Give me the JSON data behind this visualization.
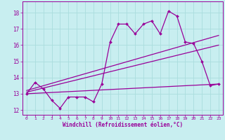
{
  "background_color": "#c8eef0",
  "grid_color": "#aadddd",
  "line_color": "#990099",
  "xlim": [
    -0.5,
    23.5
  ],
  "ylim": [
    11.7,
    18.7
  ],
  "yticks": [
    12,
    13,
    14,
    15,
    16,
    17,
    18
  ],
  "xticks": [
    0,
    1,
    2,
    3,
    4,
    5,
    6,
    7,
    8,
    9,
    10,
    11,
    12,
    13,
    14,
    15,
    16,
    17,
    18,
    19,
    20,
    21,
    22,
    23
  ],
  "xlabel": "Windchill (Refroidissement éolien,°C)",
  "series1_x": [
    0,
    1,
    2,
    3,
    4,
    5,
    6,
    7,
    8,
    9,
    10,
    11,
    12,
    13,
    14,
    15,
    16,
    17,
    18,
    19,
    20,
    21,
    22,
    23
  ],
  "series1_y": [
    13.0,
    13.7,
    13.3,
    12.6,
    12.1,
    12.8,
    12.8,
    12.8,
    12.5,
    13.6,
    16.2,
    17.3,
    17.3,
    16.7,
    17.3,
    17.5,
    16.7,
    18.1,
    17.8,
    16.2,
    16.1,
    15.0,
    13.5,
    13.6
  ],
  "trend1_x": [
    0,
    23
  ],
  "trend1_y": [
    13.2,
    16.6
  ],
  "trend2_x": [
    0,
    23
  ],
  "trend2_y": [
    13.0,
    13.6
  ],
  "trend3_x": [
    0,
    23
  ],
  "trend3_y": [
    13.1,
    16.0
  ]
}
